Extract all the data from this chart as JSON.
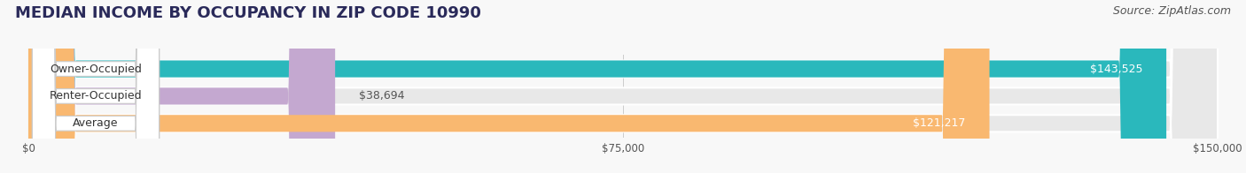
{
  "title": "MEDIAN INCOME BY OCCUPANCY IN ZIP CODE 10990",
  "source": "Source: ZipAtlas.com",
  "categories": [
    "Owner-Occupied",
    "Renter-Occupied",
    "Average"
  ],
  "values": [
    143525,
    38694,
    121217
  ],
  "bar_colors": [
    "#2ab8bc",
    "#c4a8d0",
    "#f9b870"
  ],
  "bar_labels": [
    "$143,525",
    "$38,694",
    "$121,217"
  ],
  "label_inside": [
    true,
    false,
    true
  ],
  "xlim": [
    0,
    150000
  ],
  "xticks": [
    0,
    75000,
    150000
  ],
  "xticklabels": [
    "$0",
    "$75,000",
    "$150,000"
  ],
  "bg_color": "#f0f0f0",
  "bar_bg_color": "#e0e0e0",
  "bar_border_color": "#ffffff",
  "title_fontsize": 13,
  "source_fontsize": 9,
  "label_fontsize": 9,
  "value_fontsize": 9
}
